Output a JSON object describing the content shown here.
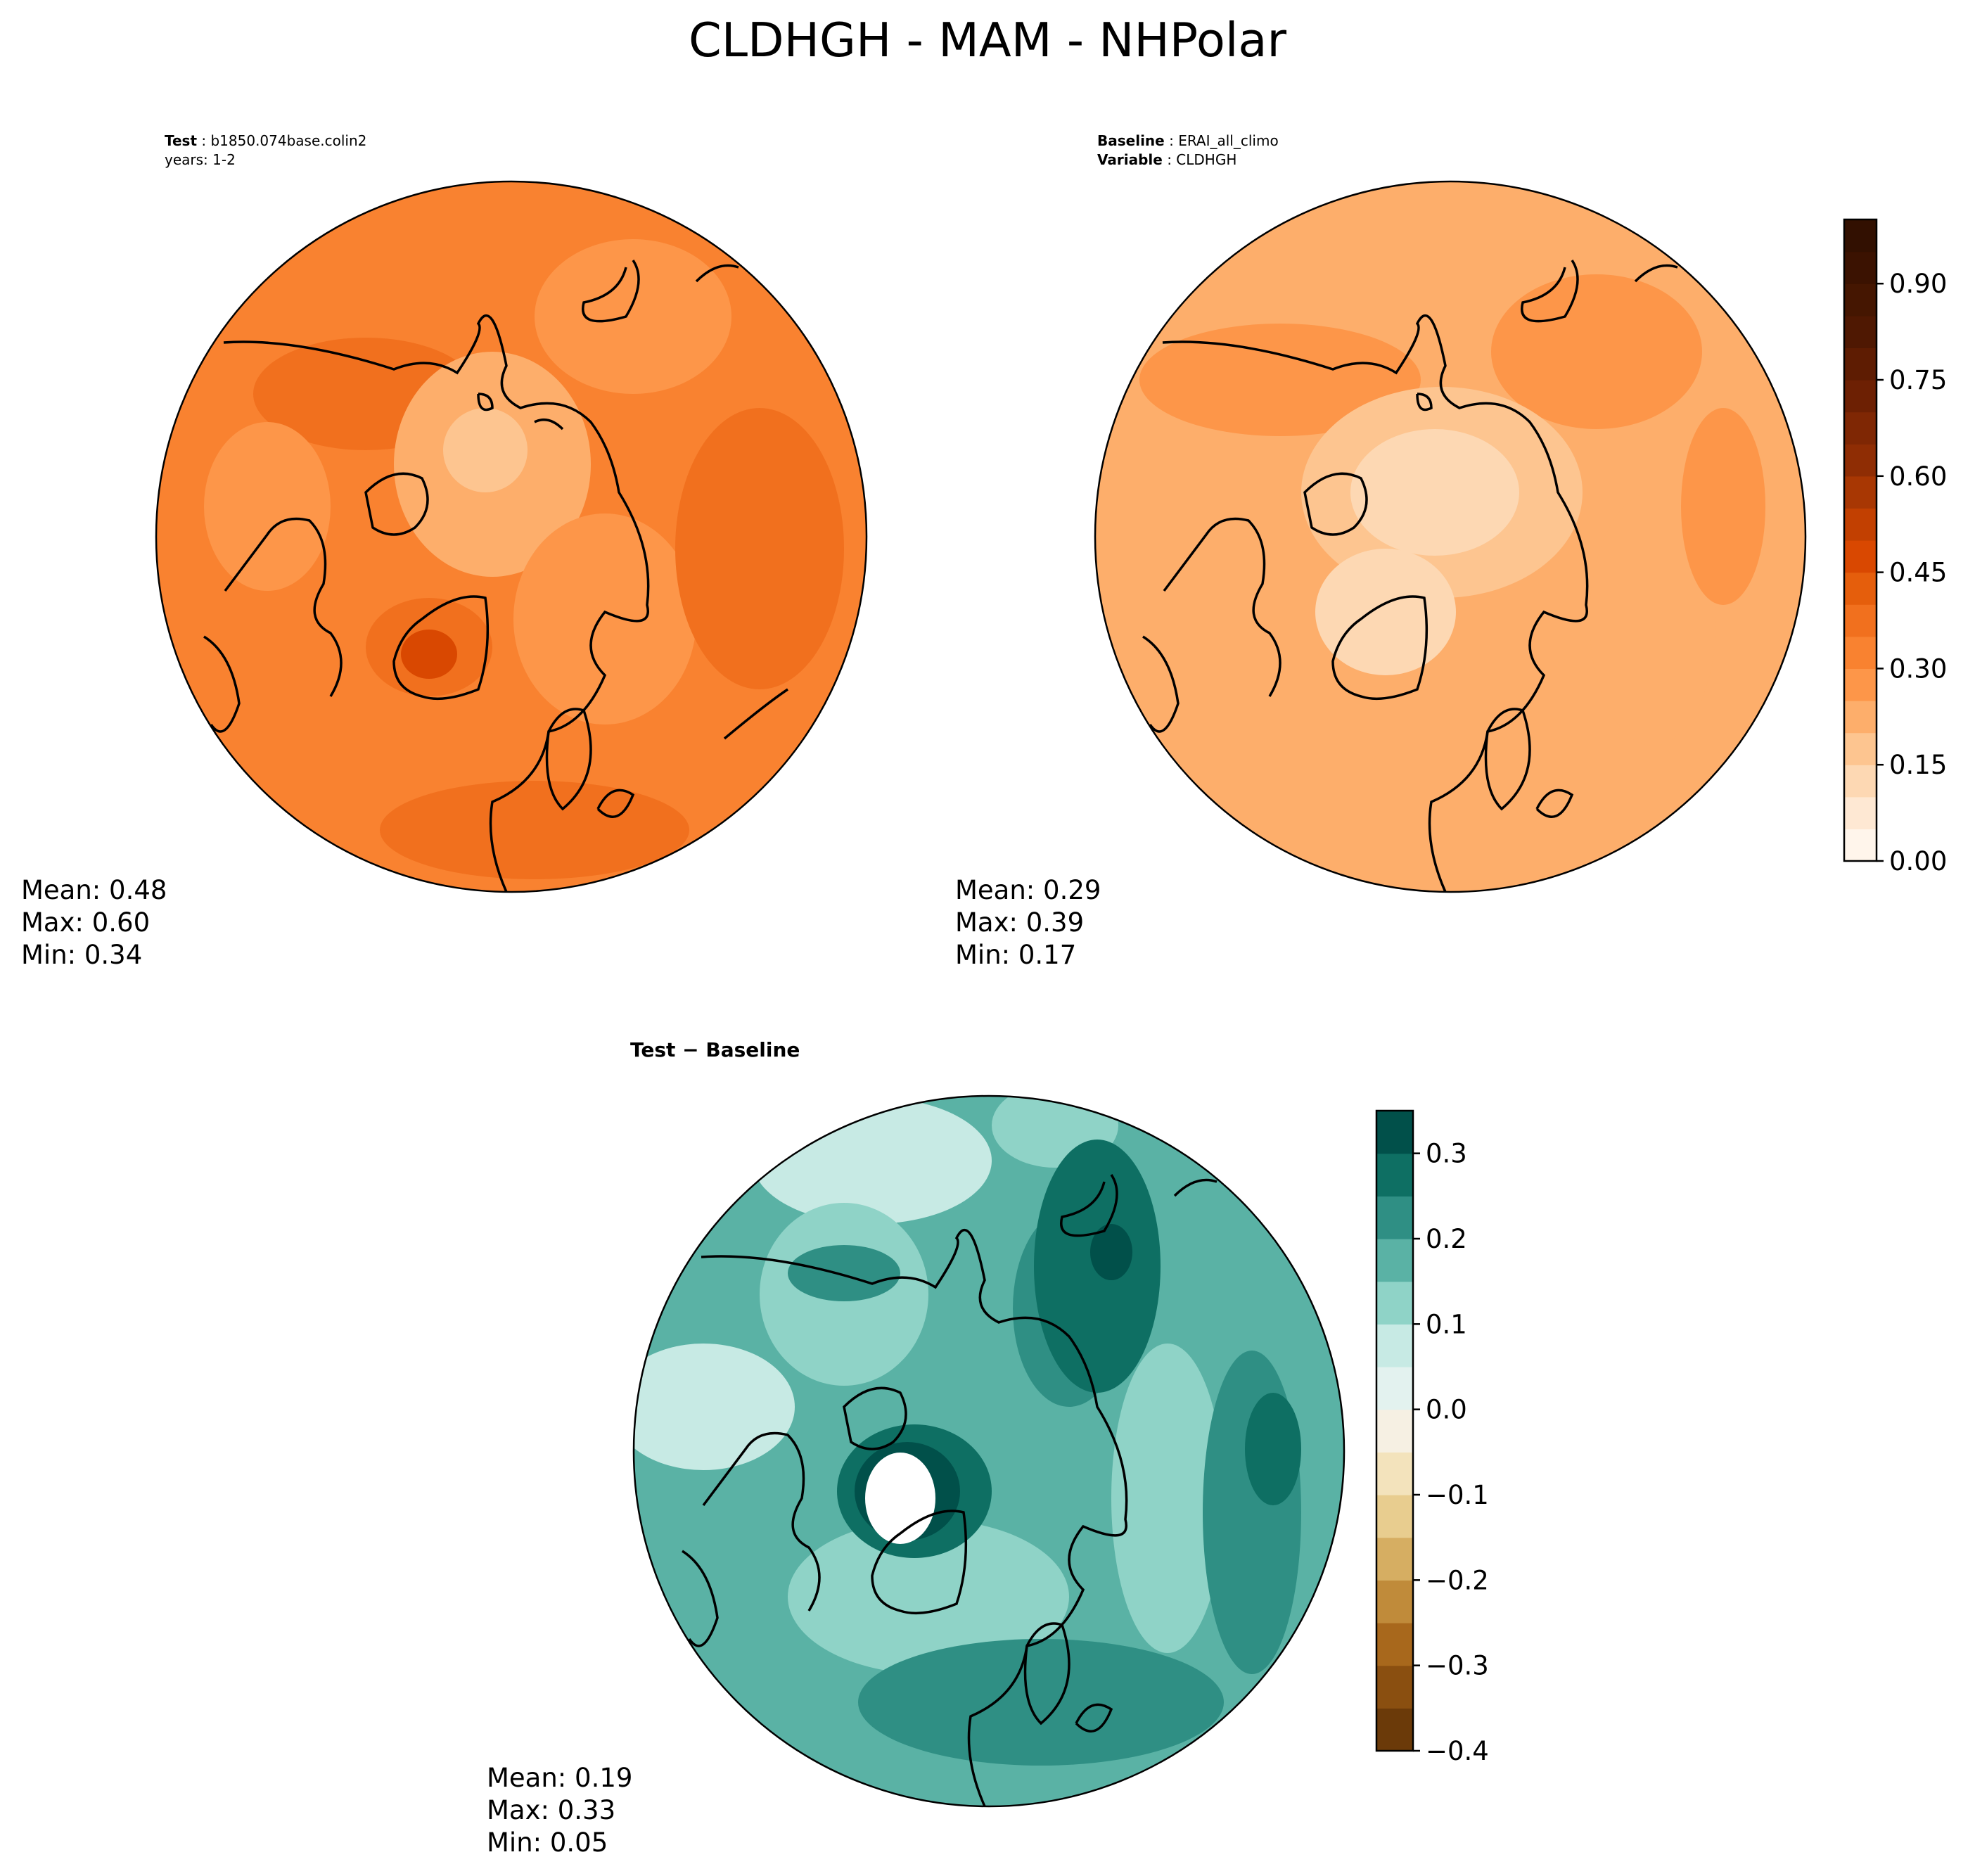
{
  "figure": {
    "title": "CLDHGH - MAM - NHPolar"
  },
  "panels": {
    "test": {
      "label_bold": "Test",
      "label_value": "b1850.074base.colin2",
      "label_line2": "years: 1-2",
      "stats": {
        "mean": "Mean:  0.48",
        "max": "Max:  0.60",
        "min": "Min:  0.34"
      }
    },
    "baseline": {
      "label_bold": "Baseline",
      "label_value": "ERAI_all_climo",
      "var_bold": "Variable",
      "var_value": "CLDHGH",
      "stats": {
        "mean": "Mean:  0.29",
        "max": "Max:  0.39",
        "min": "Min:  0.17"
      }
    },
    "diff": {
      "title": "Test − Baseline",
      "stats": {
        "mean": "Mean:  0.19",
        "max": "Max:  0.33",
        "min": "Min:  0.05"
      }
    }
  },
  "colorbars": {
    "main": {
      "levels": [
        0.0,
        0.05,
        0.1,
        0.15,
        0.2,
        0.25,
        0.3,
        0.35,
        0.4,
        0.45,
        0.5,
        0.55,
        0.6,
        0.65,
        0.7,
        0.75,
        0.8,
        0.85,
        0.9,
        0.95,
        1.0
      ],
      "colors": [
        "#fff5eb",
        "#fee8d3",
        "#fdd8b3",
        "#fdc590",
        "#fdae6b",
        "#fd9649",
        "#f98230",
        "#f1701e",
        "#e55e0c",
        "#d94801",
        "#c24001",
        "#a83703",
        "#8f2d04",
        "#7f2704",
        "#6d2003",
        "#5e1c02",
        "#4f1802",
        "#451601",
        "#3b1201",
        "#321001"
      ],
      "tick_labels": [
        "0.00",
        "0.15",
        "0.30",
        "0.45",
        "0.60",
        "0.75",
        "0.90"
      ],
      "tick_values": [
        0.0,
        0.15,
        0.3,
        0.45,
        0.6,
        0.75,
        0.9
      ]
    },
    "diff": {
      "levels": [
        -0.4,
        -0.35,
        -0.3,
        -0.25,
        -0.2,
        -0.15,
        -0.1,
        -0.05,
        0.0,
        0.05,
        0.1,
        0.15,
        0.2,
        0.25,
        0.3,
        0.35
      ],
      "colors": [
        "#6b3a09",
        "#8a4f10",
        "#a8681c",
        "#c08b3a",
        "#d6ae62",
        "#e8cd8f",
        "#f3e3bc",
        "#f6f0e3",
        "#e3f2ef",
        "#c7eae4",
        "#8fd3c7",
        "#5ab2a5",
        "#2f8f84",
        "#0e6f63",
        "#01504a"
      ],
      "tick_labels": [
        "−0.4",
        "−0.3",
        "−0.2",
        "−0.1",
        "0.0",
        "0.1",
        "0.2",
        "0.3"
      ],
      "tick_values": [
        -0.4,
        -0.3,
        -0.2,
        -0.1,
        0.0,
        0.1,
        0.2,
        0.3
      ]
    }
  }
}
